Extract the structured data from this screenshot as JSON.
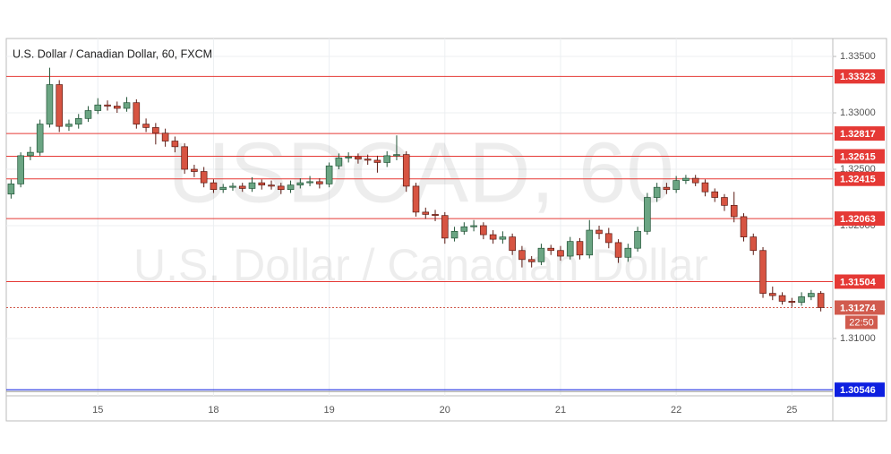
{
  "chart_data": {
    "type": "candlestick",
    "title": "U.S. Dollar / Canadian Dollar, 60, FXCM",
    "watermark": "USDCAD, 60",
    "watermark_subtitle": "U.S. Dollar / Canadian Dollar",
    "categories": [
      null,
      null,
      null,
      null,
      null,
      null,
      null,
      null,
      null,
      "15",
      null,
      null,
      null,
      null,
      null,
      null,
      null,
      null,
      null,
      null,
      null,
      "18",
      null,
      null,
      null,
      null,
      null,
      null,
      null,
      null,
      null,
      null,
      null,
      "19",
      null,
      null,
      null,
      null,
      null,
      null,
      null,
      null,
      null,
      null,
      null,
      "20",
      null,
      null,
      null,
      null,
      null,
      null,
      null,
      null,
      null,
      null,
      null,
      "21",
      null,
      null,
      null,
      null,
      null,
      null,
      null,
      null,
      null,
      null,
      null,
      "22",
      null,
      null,
      null,
      null,
      null,
      null,
      null,
      null,
      null,
      null,
      null,
      "25",
      null,
      null,
      null
    ],
    "open": [
      1.3228,
      1.3237,
      1.3262,
      1.3265,
      1.329,
      1.3325,
      1.3288,
      1.329,
      1.3295,
      1.3302,
      1.3307,
      1.3306,
      1.3304,
      1.3309,
      1.329,
      1.3287,
      1.3282,
      1.3275,
      1.327,
      1.325,
      1.3248,
      1.3238,
      1.3232,
      1.3234,
      1.3235,
      1.3233,
      1.3238,
      1.3236,
      1.3235,
      1.3232,
      1.3236,
      1.3238,
      1.3239,
      1.3237,
      1.3253,
      1.326,
      1.3261,
      1.3259,
      1.3258,
      1.3256,
      1.3262,
      1.3263,
      1.3235,
      1.3212,
      1.321,
      1.3209,
      1.3189,
      1.3195,
      1.3199,
      1.32,
      1.3192,
      1.3188,
      1.319,
      1.3178,
      1.317,
      1.3168,
      1.318,
      1.3178,
      1.3173,
      1.3186,
      1.3174,
      1.3196,
      1.3193,
      1.3185,
      1.3172,
      1.318,
      1.3195,
      1.3225,
      1.3234,
      1.3232,
      1.324,
      1.3242,
      1.3238,
      1.323,
      1.3225,
      1.3218,
      1.3208,
      1.319,
      1.3178,
      1.314,
      1.3138,
      1.3133,
      1.3132,
      1.3137,
      1.314
    ],
    "high": [
      1.3241,
      1.3265,
      1.327,
      1.3294,
      1.334,
      1.3329,
      1.3294,
      1.3299,
      1.3306,
      1.3313,
      1.3311,
      1.331,
      1.3314,
      1.3312,
      1.3295,
      1.3291,
      1.3286,
      1.3279,
      1.3273,
      1.3254,
      1.3252,
      1.3241,
      1.3237,
      1.3238,
      1.3238,
      1.3243,
      1.3241,
      1.324,
      1.3238,
      1.324,
      1.3242,
      1.3244,
      1.3242,
      1.3256,
      1.3264,
      1.3265,
      1.3264,
      1.3263,
      1.3262,
      1.3266,
      1.328,
      1.3266,
      1.3238,
      1.3216,
      1.3214,
      1.3212,
      1.3199,
      1.3203,
      1.3205,
      1.3203,
      1.3196,
      1.3195,
      1.3193,
      1.3182,
      1.3173,
      1.3184,
      1.3183,
      1.3182,
      1.319,
      1.3189,
      1.3205,
      1.32,
      1.3198,
      1.3188,
      1.3184,
      1.3199,
      1.3229,
      1.3238,
      1.3238,
      1.3244,
      1.3245,
      1.3245,
      1.3241,
      1.3233,
      1.3228,
      1.323,
      1.3211,
      1.3193,
      1.3181,
      1.3146,
      1.3141,
      1.3136,
      1.3141,
      1.3143,
      1.3142
    ],
    "low": [
      1.3224,
      1.3234,
      1.3258,
      1.3262,
      1.3287,
      1.3283,
      1.3284,
      1.3286,
      1.3292,
      1.3299,
      1.3302,
      1.33,
      1.3301,
      1.3286,
      1.3283,
      1.3272,
      1.327,
      1.3265,
      1.3246,
      1.3243,
      1.3234,
      1.3229,
      1.3229,
      1.3231,
      1.323,
      1.323,
      1.3232,
      1.3232,
      1.3228,
      1.3229,
      1.3233,
      1.3235,
      1.3233,
      1.3234,
      1.325,
      1.3256,
      1.3255,
      1.3254,
      1.3247,
      1.3252,
      1.3258,
      1.323,
      1.3208,
      1.3206,
      1.3204,
      1.3184,
      1.3186,
      1.3192,
      1.3195,
      1.3188,
      1.3184,
      1.3184,
      1.3174,
      1.3163,
      1.3163,
      1.3165,
      1.3174,
      1.3169,
      1.317,
      1.317,
      1.3171,
      1.3188,
      1.318,
      1.3167,
      1.3168,
      1.3177,
      1.3192,
      1.3221,
      1.3228,
      1.3229,
      1.3237,
      1.3235,
      1.3226,
      1.3221,
      1.3213,
      1.3203,
      1.3186,
      1.3174,
      1.3136,
      1.3134,
      1.313,
      1.3128,
      1.3129,
      1.3134,
      1.3124
    ],
    "close": [
      1.3237,
      1.3262,
      1.3265,
      1.329,
      1.3325,
      1.3288,
      1.329,
      1.3295,
      1.3302,
      1.3307,
      1.3306,
      1.3304,
      1.3309,
      1.329,
      1.3287,
      1.3282,
      1.3275,
      1.327,
      1.325,
      1.3248,
      1.3238,
      1.3232,
      1.3234,
      1.3235,
      1.3233,
      1.3238,
      1.3236,
      1.3235,
      1.3232,
      1.3236,
      1.3238,
      1.3239,
      1.3237,
      1.3253,
      1.326,
      1.3261,
      1.3259,
      1.3258,
      1.3256,
      1.3262,
      1.3263,
      1.3235,
      1.3212,
      1.321,
      1.3209,
      1.3189,
      1.3195,
      1.3199,
      1.32,
      1.3192,
      1.3188,
      1.319,
      1.3178,
      1.317,
      1.3168,
      1.318,
      1.3178,
      1.3173,
      1.3186,
      1.3174,
      1.3196,
      1.3193,
      1.3185,
      1.3172,
      1.318,
      1.3195,
      1.3225,
      1.3234,
      1.3232,
      1.324,
      1.3242,
      1.3238,
      1.323,
      1.3225,
      1.3218,
      1.3208,
      1.319,
      1.3178,
      1.314,
      1.3138,
      1.3133,
      1.3132,
      1.3137,
      1.314,
      1.31274
    ],
    "up_color": "#6ba583",
    "up_border": "#225437",
    "down_color": "#d75442",
    "down_border": "#5b1a13",
    "ylim": [
      1.30492,
      1.33659
    ],
    "yticks": [
      {
        "value": 1.335,
        "label": "1.33500"
      },
      {
        "value": 1.33,
        "label": "1.33000"
      },
      {
        "value": 1.325,
        "label": "1.32500"
      },
      {
        "value": 1.32,
        "label": "1.32000"
      },
      {
        "value": 1.31,
        "label": "1.31000"
      }
    ],
    "grid": true,
    "levels": [
      1.33323,
      1.32817,
      1.32615,
      1.32415,
      1.32063,
      1.31504
    ],
    "level_color": "#e53935",
    "support_level": 1.30546,
    "support_color": "#0d1fe0",
    "countdown": "22:50",
    "last_price_color": "#d15b4e"
  }
}
